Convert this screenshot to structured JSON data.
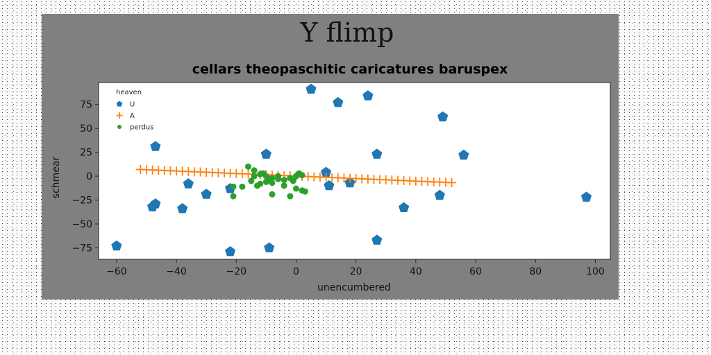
{
  "chart_data": {
    "type": "scatter",
    "title": "Y flimp",
    "subtitle": "cellars theopaschitic caricatures baruspex",
    "xlabel": "unencumbered",
    "ylabel": "schmear",
    "xlim": [
      -66,
      105
    ],
    "ylim": [
      -87,
      98
    ],
    "xticks": [
      -60,
      -40,
      -20,
      0,
      20,
      40,
      60,
      80,
      100
    ],
    "yticks": [
      -75,
      -50,
      -25,
      0,
      25,
      50,
      75
    ],
    "grid": false,
    "legend": {
      "title": "heaven",
      "position": "top-left"
    },
    "colors": {
      "U": "#1f77b4",
      "A": "#ff7f0e",
      "perdus": "#2ca02c",
      "figure_bg": "#808080",
      "plot_bg": "#ffffff"
    },
    "series": [
      {
        "name": "U",
        "marker": "pentagon",
        "points": [
          [
            5,
            91
          ],
          [
            14,
            77
          ],
          [
            24,
            84
          ],
          [
            49,
            62
          ],
          [
            -47,
            31
          ],
          [
            -10,
            23
          ],
          [
            27,
            23
          ],
          [
            56,
            22
          ],
          [
            10,
            4
          ],
          [
            -36,
            -8
          ],
          [
            -22,
            -13
          ],
          [
            11,
            -10
          ],
          [
            18,
            -7
          ],
          [
            -30,
            -19
          ],
          [
            48,
            -20
          ],
          [
            -47,
            -29
          ],
          [
            -48,
            -32
          ],
          [
            -38,
            -34
          ],
          [
            36,
            -33
          ],
          [
            27,
            -67
          ],
          [
            -60,
            -73
          ],
          [
            -22,
            -79
          ],
          [
            -9,
            -75
          ],
          [
            97,
            -22
          ]
        ]
      },
      {
        "name": "A",
        "marker": "plus",
        "x": [
          -52,
          -50,
          -48,
          -46,
          -44,
          -42,
          -40,
          -38,
          -36,
          -34,
          -32,
          -30,
          -28,
          -26,
          -24,
          -22,
          -20,
          -18,
          -16,
          -14,
          -12,
          -10,
          -8,
          -6,
          -4,
          -2,
          0,
          2,
          4,
          6,
          8,
          10,
          12,
          14,
          16,
          18,
          20,
          22,
          24,
          26,
          28,
          30,
          32,
          34,
          36,
          38,
          40,
          42,
          44,
          46,
          48,
          50,
          52
        ],
        "y": [
          7.0,
          6.7,
          6.5,
          6.2,
          6.0,
          5.7,
          5.4,
          5.2,
          4.9,
          4.6,
          4.4,
          4.1,
          3.8,
          3.6,
          3.3,
          3.0,
          2.8,
          2.5,
          2.3,
          2.0,
          1.7,
          1.5,
          1.2,
          0.9,
          0.7,
          0.4,
          0.0,
          -0.2,
          -0.4,
          -0.7,
          -0.9,
          -1.2,
          -1.5,
          -1.7,
          -2.0,
          -2.3,
          -2.5,
          -2.8,
          -3.0,
          -3.3,
          -3.6,
          -3.8,
          -4.1,
          -4.4,
          -4.6,
          -4.9,
          -5.2,
          -5.4,
          -5.7,
          -6.0,
          -6.2,
          -6.5,
          -6.8
        ]
      },
      {
        "name": "perdus",
        "marker": "circle",
        "points": [
          [
            -16,
            10
          ],
          [
            -14,
            6
          ],
          [
            -12,
            2
          ],
          [
            -10,
            0
          ],
          [
            -8,
            -2
          ],
          [
            -6,
            -3
          ],
          [
            -4,
            -4
          ],
          [
            -2,
            -2
          ],
          [
            0,
            0
          ],
          [
            2,
            1
          ],
          [
            -18,
            -11
          ],
          [
            -21,
            -11
          ],
          [
            -21,
            -21
          ],
          [
            -13,
            -10
          ],
          [
            -10,
            -6
          ],
          [
            -8,
            -7
          ],
          [
            -8,
            -19
          ],
          [
            -2,
            -21
          ],
          [
            0,
            -13
          ],
          [
            2,
            -15
          ],
          [
            3,
            -16
          ],
          [
            -14,
            0
          ],
          [
            -11,
            3
          ],
          [
            -6,
            0
          ],
          [
            -9,
            -3
          ],
          [
            -1,
            -5
          ],
          [
            1,
            3
          ],
          [
            -15,
            -5
          ],
          [
            -4,
            -10
          ],
          [
            -12,
            -8
          ]
        ]
      }
    ]
  }
}
